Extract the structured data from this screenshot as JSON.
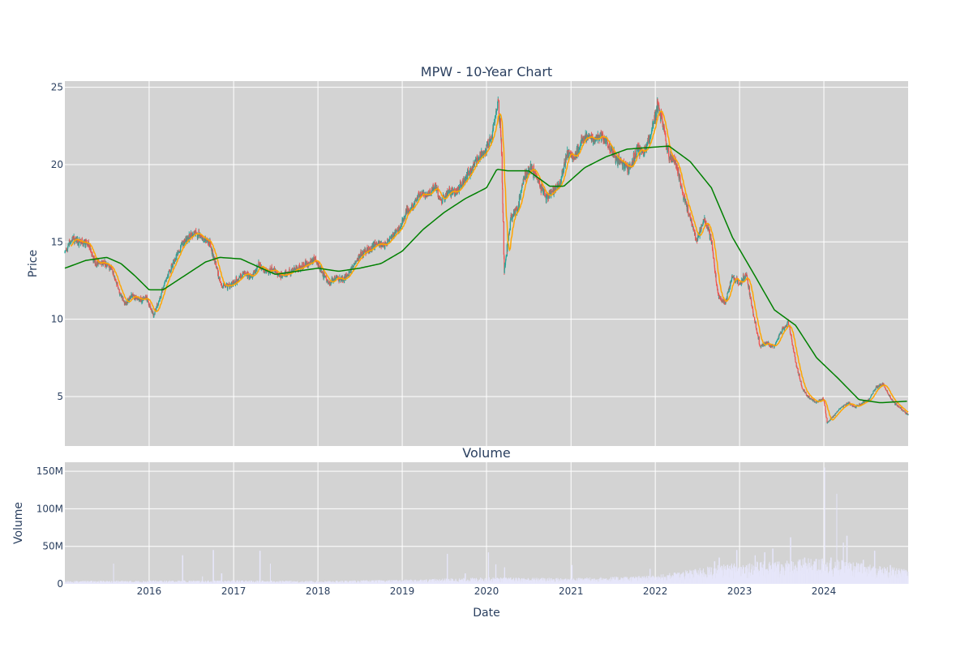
{
  "chart_data": [
    {
      "type": "candlestick",
      "title": "MPW - 10-Year Chart",
      "xlabel": "",
      "ylabel": "Price",
      "x_range": [
        "2015-01-01",
        "2024-12-31"
      ],
      "ylim": [
        1.8,
        25.4
      ],
      "yticks": [
        5,
        10,
        15,
        20,
        25
      ],
      "grid": true,
      "background": "#d3d3d3",
      "up_color": "#26a69a",
      "down_color": "#ef5350",
      "ma_short_color": "#ffa500",
      "ma_long_color": "#008000",
      "price_path": [
        [
          "2015-01-02",
          14.3
        ],
        [
          "2015-02-01",
          15.2
        ],
        [
          "2015-03-15",
          15.0
        ],
        [
          "2015-04-15",
          14.8
        ],
        [
          "2015-05-15",
          13.6
        ],
        [
          "2015-06-15",
          13.7
        ],
        [
          "2015-07-20",
          13.4
        ],
        [
          "2015-08-20",
          12.0
        ],
        [
          "2015-09-20",
          11.0
        ],
        [
          "2015-10-20",
          11.6
        ],
        [
          "2015-11-20",
          11.3
        ],
        [
          "2015-12-20",
          11.4
        ],
        [
          "2016-01-20",
          10.2
        ],
        [
          "2016-02-20",
          11.5
        ],
        [
          "2016-03-20",
          12.8
        ],
        [
          "2016-04-20",
          13.8
        ],
        [
          "2016-05-20",
          14.8
        ],
        [
          "2016-06-20",
          15.3
        ],
        [
          "2016-07-20",
          15.6
        ],
        [
          "2016-08-20",
          15.3
        ],
        [
          "2016-09-20",
          14.9
        ],
        [
          "2016-10-20",
          13.2
        ],
        [
          "2016-11-10",
          12.1
        ],
        [
          "2016-12-20",
          12.2
        ],
        [
          "2017-01-20",
          12.6
        ],
        [
          "2017-02-20",
          13.0
        ],
        [
          "2017-03-20",
          12.7
        ],
        [
          "2017-04-20",
          13.5
        ],
        [
          "2017-05-20",
          13.1
        ],
        [
          "2017-06-20",
          13.2
        ],
        [
          "2017-07-20",
          12.8
        ],
        [
          "2017-08-20",
          12.9
        ],
        [
          "2017-09-20",
          13.2
        ],
        [
          "2017-10-20",
          13.4
        ],
        [
          "2017-11-20",
          13.6
        ],
        [
          "2017-12-20",
          13.9
        ],
        [
          "2018-01-20",
          13.0
        ],
        [
          "2018-02-20",
          12.3
        ],
        [
          "2018-03-20",
          12.7
        ],
        [
          "2018-04-20",
          12.5
        ],
        [
          "2018-05-20",
          13.1
        ],
        [
          "2018-06-20",
          13.9
        ],
        [
          "2018-07-20",
          14.4
        ],
        [
          "2018-08-20",
          14.6
        ],
        [
          "2018-09-20",
          14.9
        ],
        [
          "2018-10-20",
          14.8
        ],
        [
          "2018-11-20",
          15.5
        ],
        [
          "2018-12-20",
          15.8
        ],
        [
          "2019-01-20",
          17.0
        ],
        [
          "2019-02-20",
          17.3
        ],
        [
          "2019-03-20",
          18.2
        ],
        [
          "2019-04-20",
          18.1
        ],
        [
          "2019-05-20",
          18.6
        ],
        [
          "2019-06-20",
          17.6
        ],
        [
          "2019-07-20",
          18.3
        ],
        [
          "2019-08-20",
          18.2
        ],
        [
          "2019-09-20",
          18.8
        ],
        [
          "2019-10-20",
          19.5
        ],
        [
          "2019-11-20",
          20.3
        ],
        [
          "2019-12-20",
          20.8
        ],
        [
          "2020-01-20",
          21.6
        ],
        [
          "2020-02-20",
          24.0
        ],
        [
          "2020-03-05",
          21.5
        ],
        [
          "2020-03-18",
          13.0
        ],
        [
          "2020-04-15",
          16.5
        ],
        [
          "2020-05-15",
          17.2
        ],
        [
          "2020-06-15",
          19.3
        ],
        [
          "2020-07-15",
          19.8
        ],
        [
          "2020-08-15",
          18.9
        ],
        [
          "2020-09-15",
          17.8
        ],
        [
          "2020-10-15",
          18.3
        ],
        [
          "2020-11-15",
          18.8
        ],
        [
          "2020-12-15",
          20.8
        ],
        [
          "2021-01-15",
          20.5
        ],
        [
          "2021-02-15",
          21.5
        ],
        [
          "2021-03-15",
          21.8
        ],
        [
          "2021-04-15",
          21.6
        ],
        [
          "2021-05-15",
          21.9
        ],
        [
          "2021-06-15",
          21.1
        ],
        [
          "2021-07-15",
          20.4
        ],
        [
          "2021-08-15",
          20.0
        ],
        [
          "2021-09-15",
          19.8
        ],
        [
          "2021-10-15",
          21.0
        ],
        [
          "2021-11-15",
          20.8
        ],
        [
          "2021-12-15",
          22.1
        ],
        [
          "2022-01-10",
          23.8
        ],
        [
          "2022-01-31",
          22.8
        ],
        [
          "2022-02-28",
          20.5
        ],
        [
          "2022-03-31",
          20.3
        ],
        [
          "2022-04-30",
          18.1
        ],
        [
          "2022-05-31",
          16.6
        ],
        [
          "2022-06-30",
          15.1
        ],
        [
          "2022-07-31",
          16.5
        ],
        [
          "2022-08-31",
          15.2
        ],
        [
          "2022-09-30",
          11.5
        ],
        [
          "2022-10-31",
          11.0
        ],
        [
          "2022-11-30",
          12.8
        ],
        [
          "2022-12-31",
          12.3
        ],
        [
          "2023-01-31",
          12.9
        ],
        [
          "2023-02-28",
          10.4
        ],
        [
          "2023-03-31",
          8.2
        ],
        [
          "2023-04-30",
          8.5
        ],
        [
          "2023-05-31",
          8.2
        ],
        [
          "2023-06-30",
          9.2
        ],
        [
          "2023-07-31",
          9.8
        ],
        [
          "2023-08-31",
          7.3
        ],
        [
          "2023-09-30",
          5.5
        ],
        [
          "2023-10-31",
          4.9
        ],
        [
          "2023-11-30",
          4.6
        ],
        [
          "2023-12-31",
          4.9
        ],
        [
          "2024-01-15",
          3.3
        ],
        [
          "2024-02-15",
          3.8
        ],
        [
          "2024-03-15",
          4.3
        ],
        [
          "2024-04-15",
          4.6
        ],
        [
          "2024-05-15",
          4.3
        ],
        [
          "2024-06-15",
          4.6
        ],
        [
          "2024-07-15",
          4.8
        ],
        [
          "2024-08-15",
          5.6
        ],
        [
          "2024-09-15",
          5.8
        ],
        [
          "2024-10-15",
          4.9
        ],
        [
          "2024-11-15",
          4.4
        ],
        [
          "2024-12-31",
          3.8
        ]
      ],
      "ma_long": [
        [
          "2015-01-01",
          13.3
        ],
        [
          "2015-04-01",
          13.8
        ],
        [
          "2015-07-01",
          14.0
        ],
        [
          "2015-09-01",
          13.6
        ],
        [
          "2015-11-01",
          12.8
        ],
        [
          "2016-01-01",
          11.9
        ],
        [
          "2016-03-01",
          11.9
        ],
        [
          "2016-06-01",
          12.8
        ],
        [
          "2016-09-01",
          13.7
        ],
        [
          "2016-11-01",
          14.0
        ],
        [
          "2017-02-01",
          13.9
        ],
        [
          "2017-05-01",
          13.3
        ],
        [
          "2017-07-01",
          12.9
        ],
        [
          "2017-10-01",
          13.1
        ],
        [
          "2018-01-01",
          13.3
        ],
        [
          "2018-04-01",
          13.1
        ],
        [
          "2018-07-01",
          13.3
        ],
        [
          "2018-10-01",
          13.6
        ],
        [
          "2019-01-01",
          14.4
        ],
        [
          "2019-04-01",
          15.8
        ],
        [
          "2019-07-01",
          16.9
        ],
        [
          "2019-10-01",
          17.8
        ],
        [
          "2020-01-01",
          18.5
        ],
        [
          "2020-02-15",
          19.7
        ],
        [
          "2020-04-01",
          19.6
        ],
        [
          "2020-07-01",
          19.6
        ],
        [
          "2020-10-01",
          18.6
        ],
        [
          "2020-12-01",
          18.6
        ],
        [
          "2021-03-01",
          19.8
        ],
        [
          "2021-06-01",
          20.5
        ],
        [
          "2021-09-01",
          21.0
        ],
        [
          "2021-12-01",
          21.1
        ],
        [
          "2022-03-01",
          21.2
        ],
        [
          "2022-06-01",
          20.2
        ],
        [
          "2022-09-01",
          18.5
        ],
        [
          "2022-12-01",
          15.3
        ],
        [
          "2023-03-01",
          13.0
        ],
        [
          "2023-06-01",
          10.6
        ],
        [
          "2023-09-01",
          9.6
        ],
        [
          "2023-12-01",
          7.5
        ],
        [
          "2024-03-01",
          6.2
        ],
        [
          "2024-06-01",
          4.8
        ],
        [
          "2024-09-01",
          4.6
        ],
        [
          "2024-12-31",
          4.7
        ]
      ],
      "ma_short_window": 20
    },
    {
      "type": "bar",
      "title": "Volume",
      "xlabel": "Date",
      "ylabel": "Volume",
      "ylim": [
        0,
        162000000
      ],
      "yticks": [
        0,
        50000000,
        100000000,
        150000000
      ],
      "ytick_labels": [
        "0",
        "50M",
        "100M",
        "150M"
      ],
      "xticks": [
        "2016",
        "2017",
        "2018",
        "2019",
        "2020",
        "2021",
        "2022",
        "2023",
        "2024"
      ],
      "grid": true,
      "background": "#d3d3d3",
      "bar_color": "#e6e6fa",
      "volume_profile": [
        [
          "2015-01-01",
          2500000
        ],
        [
          "2016-01-01",
          2800000
        ],
        [
          "2017-01-01",
          3000000
        ],
        [
          "2018-01-01",
          2500000
        ],
        [
          "2019-01-01",
          3500000
        ],
        [
          "2020-01-01",
          5500000
        ],
        [
          "2021-01-01",
          5000000
        ],
        [
          "2022-01-01",
          7000000
        ],
        [
          "2022-09-01",
          15000000
        ],
        [
          "2023-01-01",
          18000000
        ],
        [
          "2024-01-01",
          22000000
        ],
        [
          "2024-12-31",
          12000000
        ]
      ],
      "spikes": [
        [
          "2015-08-01",
          27000000
        ],
        [
          "2016-05-25",
          38000000
        ],
        [
          "2016-08-20",
          10000000
        ],
        [
          "2016-10-05",
          45000000
        ],
        [
          "2016-11-10",
          14000000
        ],
        [
          "2017-04-25",
          44000000
        ],
        [
          "2017-06-10",
          27000000
        ],
        [
          "2019-07-15",
          40000000
        ],
        [
          "2019-10-01",
          14000000
        ],
        [
          "2020-01-10",
          42000000
        ],
        [
          "2020-02-10",
          26000000
        ],
        [
          "2020-03-20",
          22000000
        ],
        [
          "2021-01-05",
          25000000
        ],
        [
          "2021-12-10",
          20000000
        ],
        [
          "2022-09-15",
          30000000
        ],
        [
          "2022-10-05",
          35000000
        ],
        [
          "2022-12-20",
          45000000
        ],
        [
          "2023-03-10",
          38000000
        ],
        [
          "2023-04-20",
          42000000
        ],
        [
          "2023-05-25",
          47000000
        ],
        [
          "2023-08-10",
          62000000
        ],
        [
          "2023-10-10",
          35000000
        ],
        [
          "2023-11-20",
          30000000
        ],
        [
          "2024-01-05",
          155000000
        ],
        [
          "2024-02-01",
          35000000
        ],
        [
          "2024-02-25",
          120000000
        ],
        [
          "2024-03-25",
          55000000
        ],
        [
          "2024-04-10",
          64000000
        ],
        [
          "2024-06-20",
          32000000
        ],
        [
          "2024-08-08",
          44000000
        ],
        [
          "2024-10-15",
          25000000
        ]
      ]
    }
  ]
}
